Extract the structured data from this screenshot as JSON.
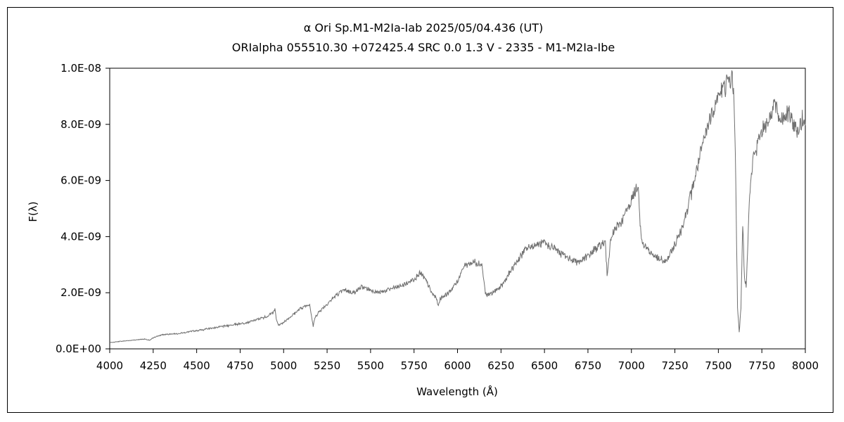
{
  "chart_data": {
    "type": "line",
    "title": "α Ori    Sp.M1-M2Ia-Iab   2025/05/04.436 (UT)",
    "subtitle": "ORIalpha 055510.30 +072425.4 SRC 0.0 1.3 V - 2335 - M1-M2Ia-Ibe",
    "xlabel": "Wavelength (Å)",
    "ylabel": "F(λ)",
    "xlim": [
      4000,
      8000
    ],
    "ylim": [
      0,
      1e-08
    ],
    "grid": false,
    "legend": "none",
    "line_color": "#707070",
    "x_ticks": [
      "4000",
      "4250",
      "4500",
      "4750",
      "5000",
      "5250",
      "5500",
      "5750",
      "6000",
      "6250",
      "6500",
      "6750",
      "7000",
      "7250",
      "7500",
      "7750",
      "8000"
    ],
    "y_ticks": [
      "0.0E+00",
      "2.0E-09",
      "4.0E-09",
      "6.0E-09",
      "8.0E-09",
      "1.0E-08"
    ],
    "series": [
      {
        "x": [
          4000,
          4050,
          4100,
          4150,
          4200,
          4230,
          4250,
          4300,
          4350,
          4400,
          4450,
          4500,
          4550,
          4600,
          4650,
          4700,
          4750,
          4800,
          4850,
          4900,
          4930,
          4950,
          4960,
          4970,
          4990,
          5050,
          5100,
          5150,
          5170,
          5180,
          5200,
          5250,
          5300,
          5350,
          5400,
          5450,
          5500,
          5550,
          5600,
          5650,
          5700,
          5750,
          5780,
          5800,
          5830,
          5850,
          5880,
          5890,
          5900,
          5950,
          6000,
          6030,
          6050,
          6100,
          6140,
          6160,
          6170,
          6200,
          6250,
          6300,
          6350,
          6400,
          6450,
          6500,
          6550,
          6600,
          6650,
          6700,
          6750,
          6800,
          6850,
          6860,
          6870,
          6880,
          6900,
          6950,
          7000,
          7040,
          7050,
          7060,
          7100,
          7150,
          7200,
          7250,
          7300,
          7350,
          7400,
          7450,
          7500,
          7550,
          7580,
          7590,
          7600,
          7610,
          7620,
          7630,
          7640,
          7650,
          7660,
          7680,
          7700,
          7750,
          7800,
          7820,
          7850,
          7900,
          7950,
          8000
        ],
        "y": [
          2.2e-10,
          2.6e-10,
          2.9e-10,
          3.2e-10,
          3.5e-10,
          3e-10,
          4e-10,
          5e-10,
          5.3e-10,
          5.5e-10,
          6e-10,
          6.5e-10,
          7e-10,
          7.5e-10,
          8e-10,
          8.5e-10,
          9e-10,
          9.5e-10,
          1.05e-09,
          1.15e-09,
          1.25e-09,
          1.4e-09,
          1e-09,
          8.5e-10,
          9e-10,
          1.2e-09,
          1.45e-09,
          1.6e-09,
          8e-10,
          1.1e-09,
          1.3e-09,
          1.6e-09,
          1.9e-09,
          2.1e-09,
          2e-09,
          2.2e-09,
          2.1e-09,
          2e-09,
          2.1e-09,
          2.2e-09,
          2.3e-09,
          2.5e-09,
          2.7e-09,
          2.6e-09,
          2.3e-09,
          2e-09,
          1.8e-09,
          1.5e-09,
          1.8e-09,
          2e-09,
          2.4e-09,
          2.9e-09,
          3e-09,
          3.1e-09,
          3e-09,
          2e-09,
          1.9e-09,
          2e-09,
          2.2e-09,
          2.7e-09,
          3.2e-09,
          3.6e-09,
          3.7e-09,
          3.75e-09,
          3.6e-09,
          3.4e-09,
          3.2e-09,
          3.1e-09,
          3.3e-09,
          3.6e-09,
          3.8e-09,
          2.6e-09,
          3.3e-09,
          3.8e-09,
          4.2e-09,
          4.6e-09,
          5.3e-09,
          5.9e-09,
          4.5e-09,
          3.8e-09,
          3.5e-09,
          3.2e-09,
          3.1e-09,
          3.7e-09,
          4.5e-09,
          5.7e-09,
          7e-09,
          8.2e-09,
          9e-09,
          9.5e-09,
          9.6e-09,
          9e-09,
          6e-09,
          1.5e-09,
          6e-10,
          1.5e-09,
          4.5e-09,
          2.5e-09,
          2.3e-09,
          5.5e-09,
          6.8e-09,
          7.8e-09,
          8.3e-09,
          8.8e-09,
          8.2e-09,
          8.4e-09,
          7.8e-09,
          8.2e-09
        ]
      }
    ]
  }
}
